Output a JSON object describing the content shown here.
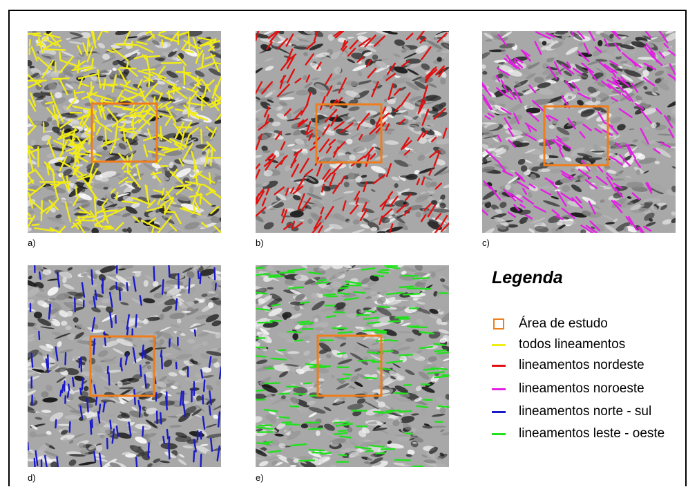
{
  "panels": [
    {
      "id": "a",
      "label": "a)",
      "theme": "todos lineamentos",
      "line_color": "#f2ec16",
      "orientation": "all",
      "line_count": 420
    },
    {
      "id": "b",
      "label": "b)",
      "theme": "lineamentos nordeste",
      "line_color": "#e01010",
      "orientation": "northeast",
      "line_count": 190
    },
    {
      "id": "c",
      "label": "c)",
      "theme": "lineamentos noroeste",
      "line_color": "#e41ee4",
      "orientation": "northwest",
      "line_count": 175
    },
    {
      "id": "d",
      "label": "d)",
      "theme": "lineamentos norte - sul",
      "line_color": "#1a1ac8",
      "orientation": "north-south",
      "line_count": 140
    },
    {
      "id": "e",
      "label": "e)",
      "theme": "lineamentos leste - oeste",
      "line_color": "#22e01e",
      "orientation": "east-west",
      "line_count": 150
    }
  ],
  "study_area_color": "#f07d1a",
  "legend": {
    "title": "Legenda",
    "items": [
      {
        "label": "Área de estudo",
        "symbol": "square",
        "color": "#f07d1a"
      },
      {
        "label": "todos lineamentos",
        "symbol": "line",
        "color": "#f2ec16"
      },
      {
        "label": "lineamentos nordeste",
        "symbol": "line",
        "color": "#e01010"
      },
      {
        "label": "lineamentos noroeste",
        "symbol": "line",
        "color": "#e41ee4"
      },
      {
        "label": "lineamentos norte - sul",
        "symbol": "line",
        "color": "#1a1ac8"
      },
      {
        "label": "lineamentos leste - oeste",
        "symbol": "line",
        "color": "#22e01e"
      }
    ]
  }
}
